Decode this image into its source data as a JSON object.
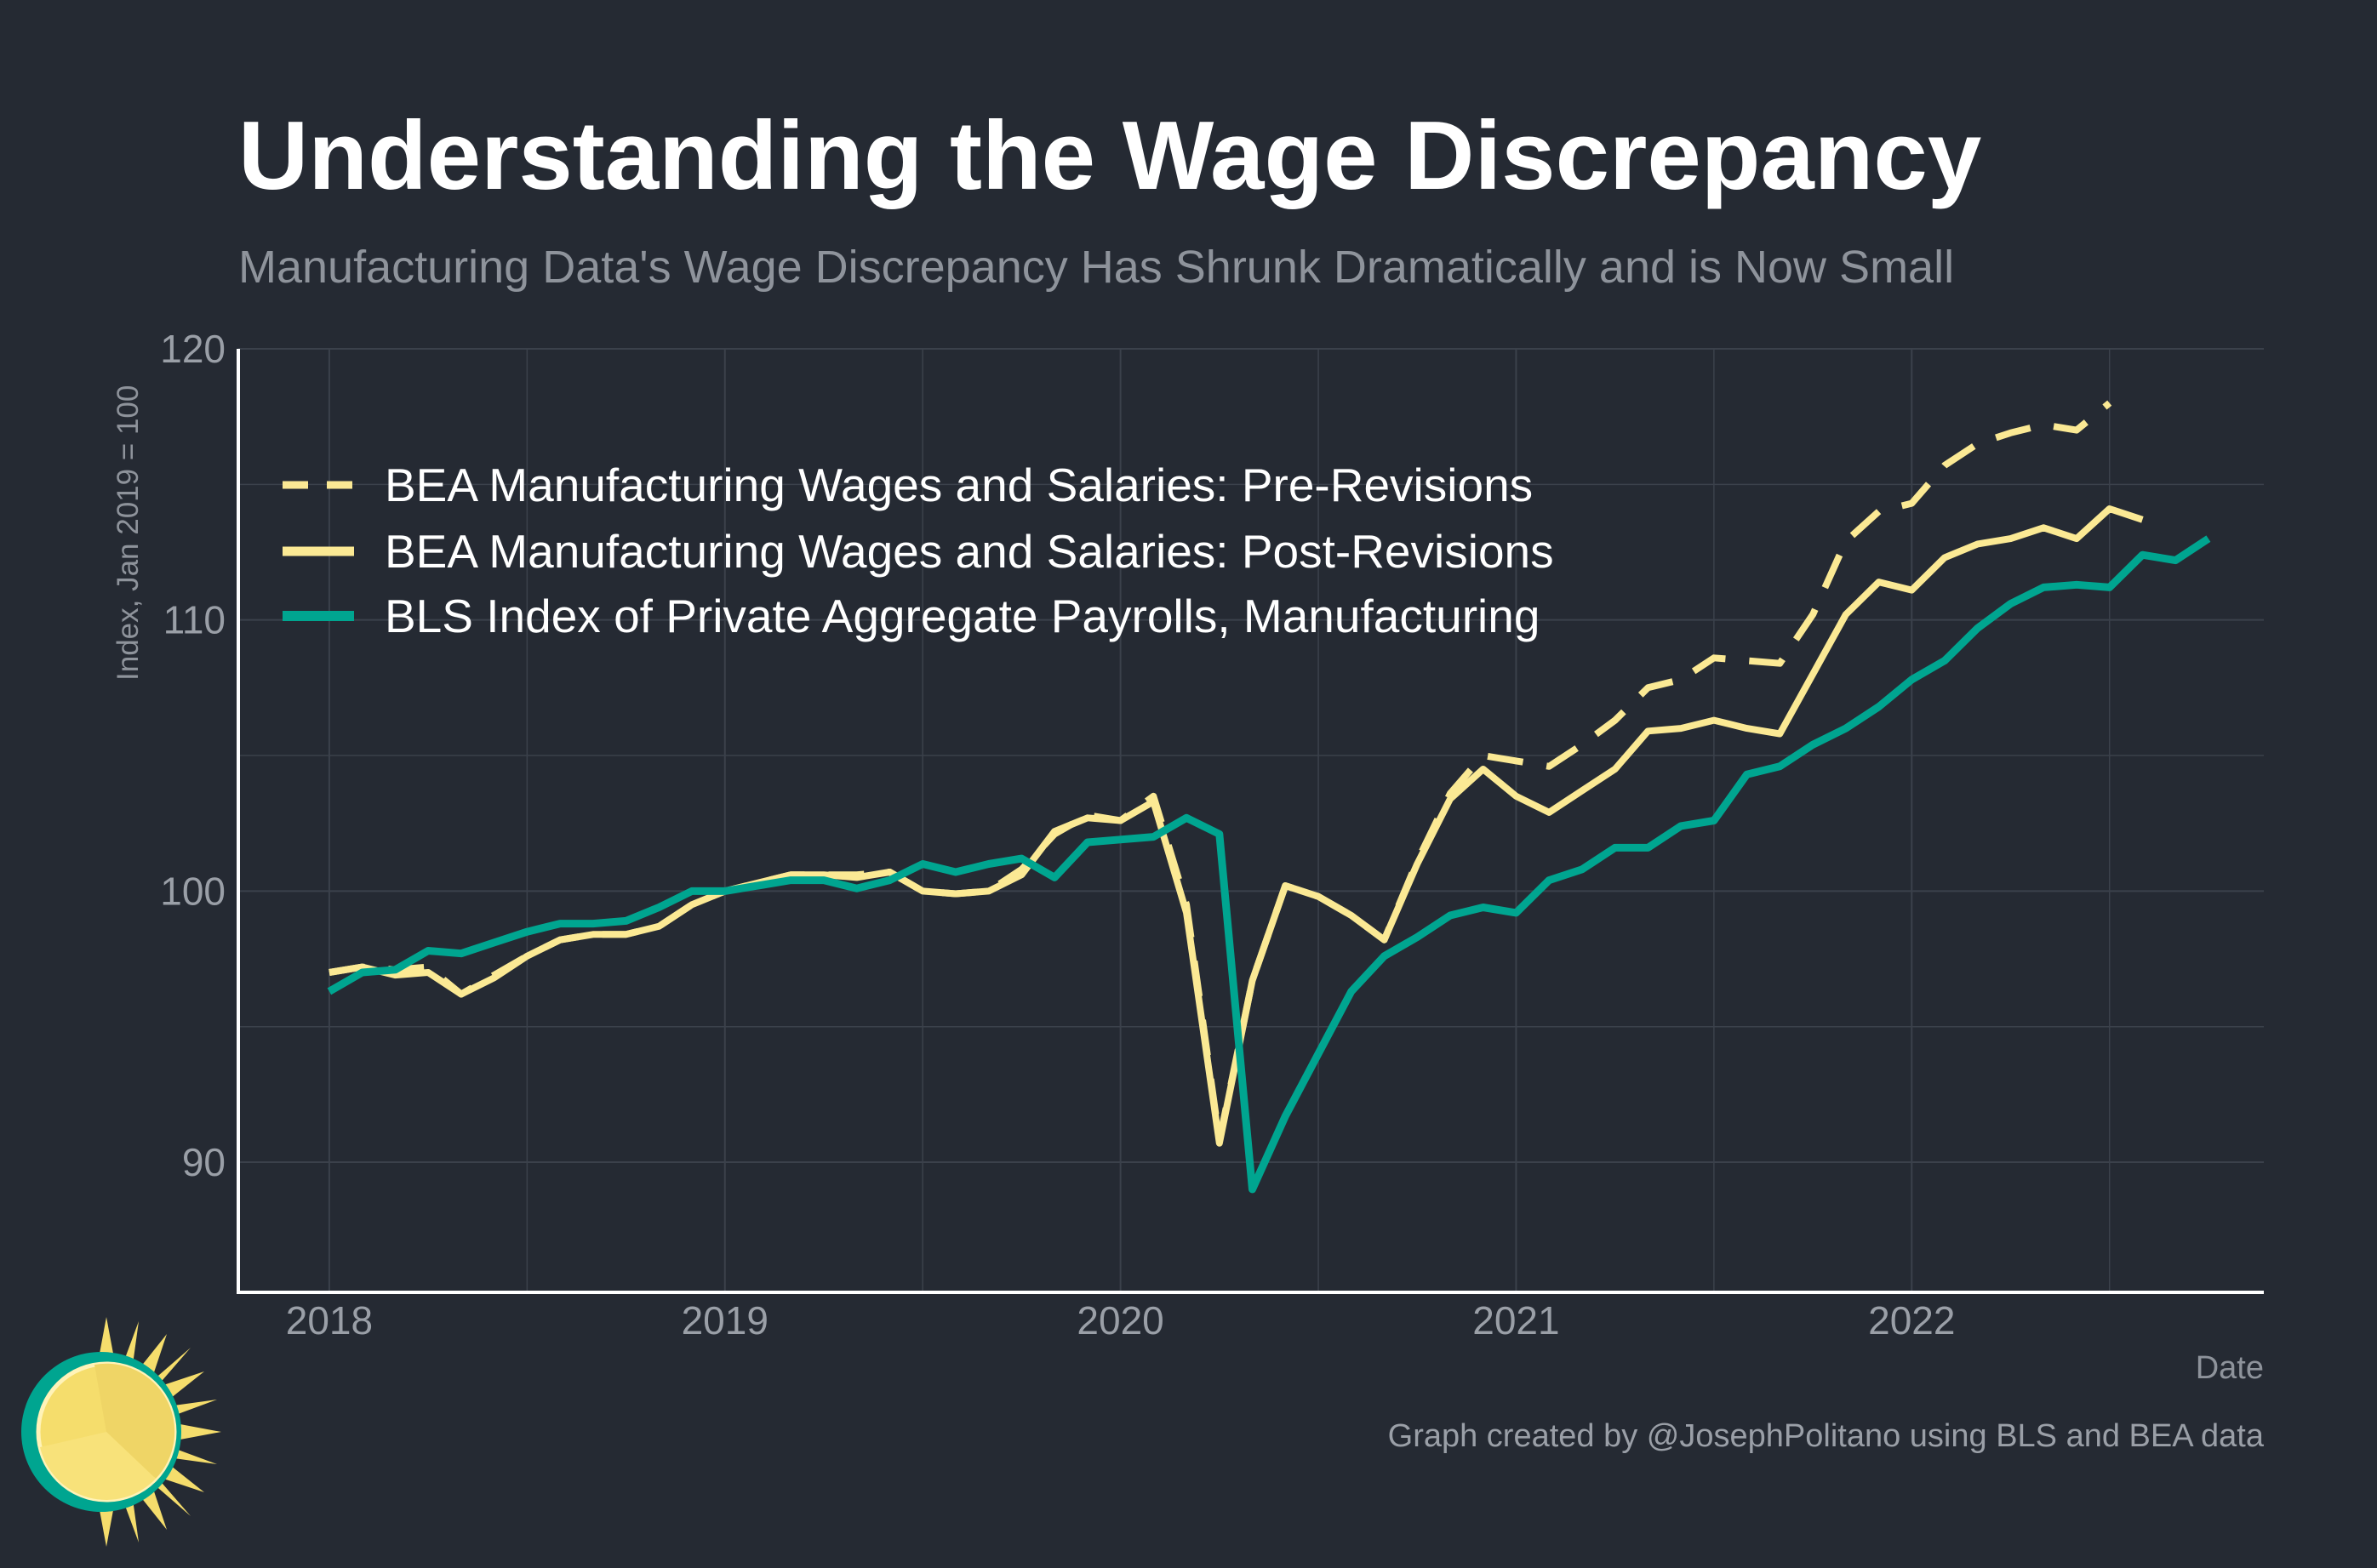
{
  "colors": {
    "background": "#252a33",
    "grid": "#3b414b",
    "axis": "#ffffff",
    "pre_revisions": "#fbe994",
    "post_revisions": "#fbe994",
    "bls": "#00a590",
    "logo_sun": "#f5dd6c",
    "logo_ring": "#00a590"
  },
  "logo": {
    "icon": "sun-logo-icon"
  },
  "chart_data": {
    "type": "line",
    "title": "Understanding the Wage Discrepancy",
    "subtitle": "Manufacturing Data's Wage Discrepancy Has Shrunk Dramatically and is Now Small",
    "xlabel": "Date",
    "ylabel": "Index, Jan 2019 = 100",
    "caption": "Graph created by @JosephPolitano using BLS and BEA data",
    "x_start": "2018-01",
    "xlim": [
      2017.77,
      2022.89
    ],
    "ylim": [
      85.2,
      120
    ],
    "x_ticks": [
      {
        "value": 2018,
        "label": "2018"
      },
      {
        "value": 2019,
        "label": "2019"
      },
      {
        "value": 2020,
        "label": "2020"
      },
      {
        "value": 2021,
        "label": "2021"
      },
      {
        "value": 2022,
        "label": "2022"
      }
    ],
    "y_ticks": [
      {
        "value": 90,
        "label": "90"
      },
      {
        "value": 100,
        "label": "100"
      },
      {
        "value": 110,
        "label": "110"
      },
      {
        "value": 120,
        "label": "120"
      }
    ],
    "legend_position": "top-left",
    "series": [
      {
        "name": "BEA Manufacturing Wages and Salaries: Pre-Revisions",
        "style": "dashed",
        "values": [
          97.0,
          97.2,
          97.1,
          97.2,
          96.2,
          96.9,
          97.6,
          98.2,
          98.4,
          98.4,
          98.7,
          99.5,
          100.0,
          100.3,
          100.6,
          100.6,
          100.6,
          100.7,
          100.0,
          99.9,
          100.0,
          100.8,
          102.1,
          102.8,
          102.6,
          103.5,
          99.5,
          90.8,
          96.7,
          100.2,
          99.8,
          99.1,
          98.2,
          101.1,
          103.6,
          105.0,
          104.8,
          104.6,
          105.4,
          106.3,
          107.5,
          107.8,
          108.6,
          108.5,
          108.4,
          110.2,
          112.9,
          114.0,
          114.3,
          115.7,
          116.5,
          116.9,
          117.2,
          117.0,
          118.0
        ]
      },
      {
        "name": "BEA Manufacturing Wages and Salaries: Post-Revisions",
        "style": "solid",
        "values": [
          97.0,
          97.2,
          96.9,
          97.0,
          96.2,
          96.8,
          97.6,
          98.2,
          98.4,
          98.4,
          98.7,
          99.5,
          100.0,
          100.3,
          100.6,
          100.6,
          100.5,
          100.7,
          100.0,
          99.9,
          100.0,
          100.6,
          102.2,
          102.7,
          102.6,
          103.3,
          99.2,
          90.7,
          96.7,
          100.2,
          99.8,
          99.1,
          98.2,
          101.0,
          103.4,
          104.5,
          103.5,
          102.9,
          103.7,
          104.5,
          105.9,
          106.0,
          106.3,
          106.0,
          105.8,
          108.0,
          110.2,
          111.4,
          111.1,
          112.3,
          112.8,
          113.0,
          113.4,
          113.0,
          114.1,
          113.7
        ]
      },
      {
        "name": "BLS Index of Private Aggregate Payrolls, Manufacturing",
        "style": "solid-thick",
        "values": [
          96.3,
          97.0,
          97.1,
          97.8,
          97.7,
          98.1,
          98.5,
          98.8,
          98.8,
          98.9,
          99.4,
          100.0,
          100.0,
          100.2,
          100.4,
          100.4,
          100.1,
          100.4,
          101.0,
          100.7,
          101.0,
          101.2,
          100.5,
          101.8,
          101.9,
          102.0,
          102.7,
          102.1,
          89.0,
          91.7,
          94.0,
          96.3,
          97.6,
          98.3,
          99.1,
          99.4,
          99.2,
          100.4,
          100.8,
          101.6,
          101.6,
          102.4,
          102.6,
          104.3,
          104.6,
          105.4,
          106.0,
          106.8,
          107.8,
          108.5,
          109.7,
          110.6,
          111.2,
          111.3,
          111.2,
          112.4,
          112.2,
          113.0
        ]
      }
    ]
  }
}
